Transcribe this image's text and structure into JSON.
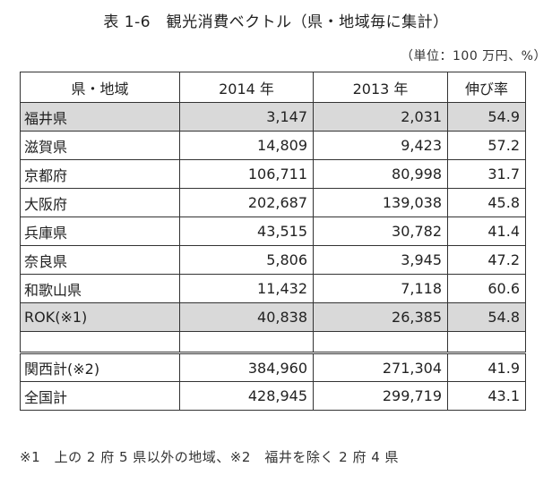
{
  "title": "表 1-6　観光消費ベクトル（県・地域毎に集計）",
  "unit_note": "（単位：100 万円、%）",
  "table": {
    "headers": [
      "県・地域",
      "2014 年",
      "2013 年",
      "伸び率"
    ],
    "rows": [
      {
        "region": "福井県",
        "y2014": "3,147",
        "y2013": "2,031",
        "growth": "54.9",
        "shaded": true
      },
      {
        "region": "滋賀県",
        "y2014": "14,809",
        "y2013": "9,423",
        "growth": "57.2",
        "shaded": false
      },
      {
        "region": "京都府",
        "y2014": "106,711",
        "y2013": "80,998",
        "growth": "31.7",
        "shaded": false
      },
      {
        "region": "大阪府",
        "y2014": "202,687",
        "y2013": "139,038",
        "growth": "45.8",
        "shaded": false
      },
      {
        "region": "兵庫県",
        "y2014": "43,515",
        "y2013": "30,782",
        "growth": "41.4",
        "shaded": false
      },
      {
        "region": "奈良県",
        "y2014": "5,806",
        "y2013": "3,945",
        "growth": "47.2",
        "shaded": false
      },
      {
        "region": "和歌山県",
        "y2014": "11,432",
        "y2013": "7,118",
        "growth": "60.6",
        "shaded": false
      },
      {
        "region": "ROK(※1)",
        "y2014": "40,838",
        "y2013": "26,385",
        "growth": "54.8",
        "shaded": true
      }
    ],
    "totals": [
      {
        "region": "関西計(※2)",
        "y2014": "384,960",
        "y2013": "271,304",
        "growth": "41.9"
      },
      {
        "region": "全国計",
        "y2014": "428,945",
        "y2013": "299,719",
        "growth": "43.1"
      }
    ]
  },
  "footnote": "※1　上の 2 府 5 県以外の地域、※2　福井を除く 2 府 4 県",
  "colors": {
    "shaded_row": "#d9d9d9",
    "border": "#333333",
    "text": "#222222"
  }
}
